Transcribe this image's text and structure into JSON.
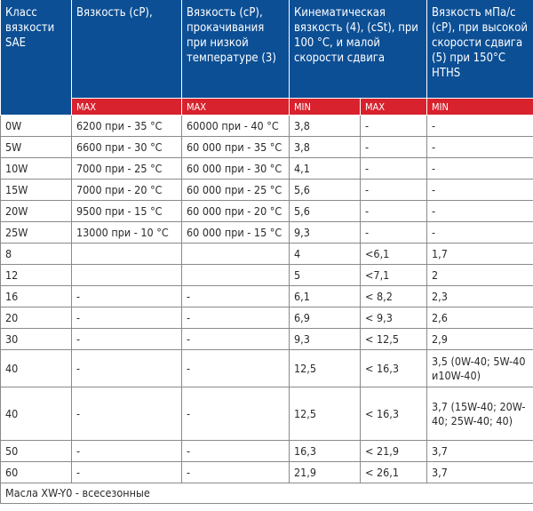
{
  "headers": {
    "c1": "Класс вязкости SAE",
    "c2": "Вязкость (cP),",
    "c3": "Вязкость (cP), прокачивания при низкой температуре (3)",
    "c4": "Кинематическая вязкость (4), (cSt), при 100 °C, и малой скорости сдвига",
    "c5": "Вязкость мПа/с (cP), при высокой скорости сдвига (5) при 150°C HTHS"
  },
  "subheaders": [
    "MAX",
    "MAX",
    "MIN",
    "MAX",
    "MIN"
  ],
  "colors": {
    "header_blue": "#0c4f95",
    "subheader_red": "#d8222e"
  },
  "rows": [
    [
      "0W",
      "6200 при - 35 °C",
      "60000 при - 40 °C",
      "3,8",
      "-",
      "-"
    ],
    [
      "5W",
      "6600 при - 30 °C",
      "60 000 при - 35 °C",
      "3,8",
      "-",
      "-"
    ],
    [
      "10W",
      "7000 при - 25 °C",
      "60 000 при - 30 °C",
      "4,1",
      "-",
      "-"
    ],
    [
      "15W",
      "7000 при - 20 °C",
      "60 000 при - 25 °C",
      "5,6",
      "-",
      "-"
    ],
    [
      "20W",
      "9500 при - 15 °C",
      "60 000 при - 20 °C",
      "5,6",
      "-",
      "-"
    ],
    [
      "25W",
      "13000 при - 10 °C",
      "60 000 при - 15 °C",
      "9,3",
      "-",
      "-"
    ],
    [
      "8",
      "",
      "",
      "4",
      "<6,1",
      "1,7"
    ],
    [
      "12",
      "",
      "",
      "5",
      "<7,1",
      "2"
    ],
    [
      "16",
      "-",
      "-",
      "6,1",
      "< 8,2",
      "2,3"
    ],
    [
      "20",
      "-",
      "-",
      "6,9",
      "< 9,3",
      "2,6"
    ],
    [
      "30",
      "-",
      "-",
      "9,3",
      "< 12,5",
      "2,9"
    ],
    [
      "40",
      "-",
      "-",
      "12,5",
      "< 16,3",
      "3,5 (0W-40; 5W-40 и10W-40)"
    ],
    [
      "40",
      "-",
      "-",
      "12,5",
      "< 16,3",
      "3,7 (15W-40; 20W-40; 25W-40; 40)"
    ],
    [
      "50",
      "-",
      "-",
      "16,3",
      "< 21,9",
      "3,7"
    ],
    [
      "60",
      "-",
      "-",
      "21,9",
      "< 26,1",
      "3,7"
    ]
  ],
  "footer": "Масла XW-Y0 - всесезонные"
}
